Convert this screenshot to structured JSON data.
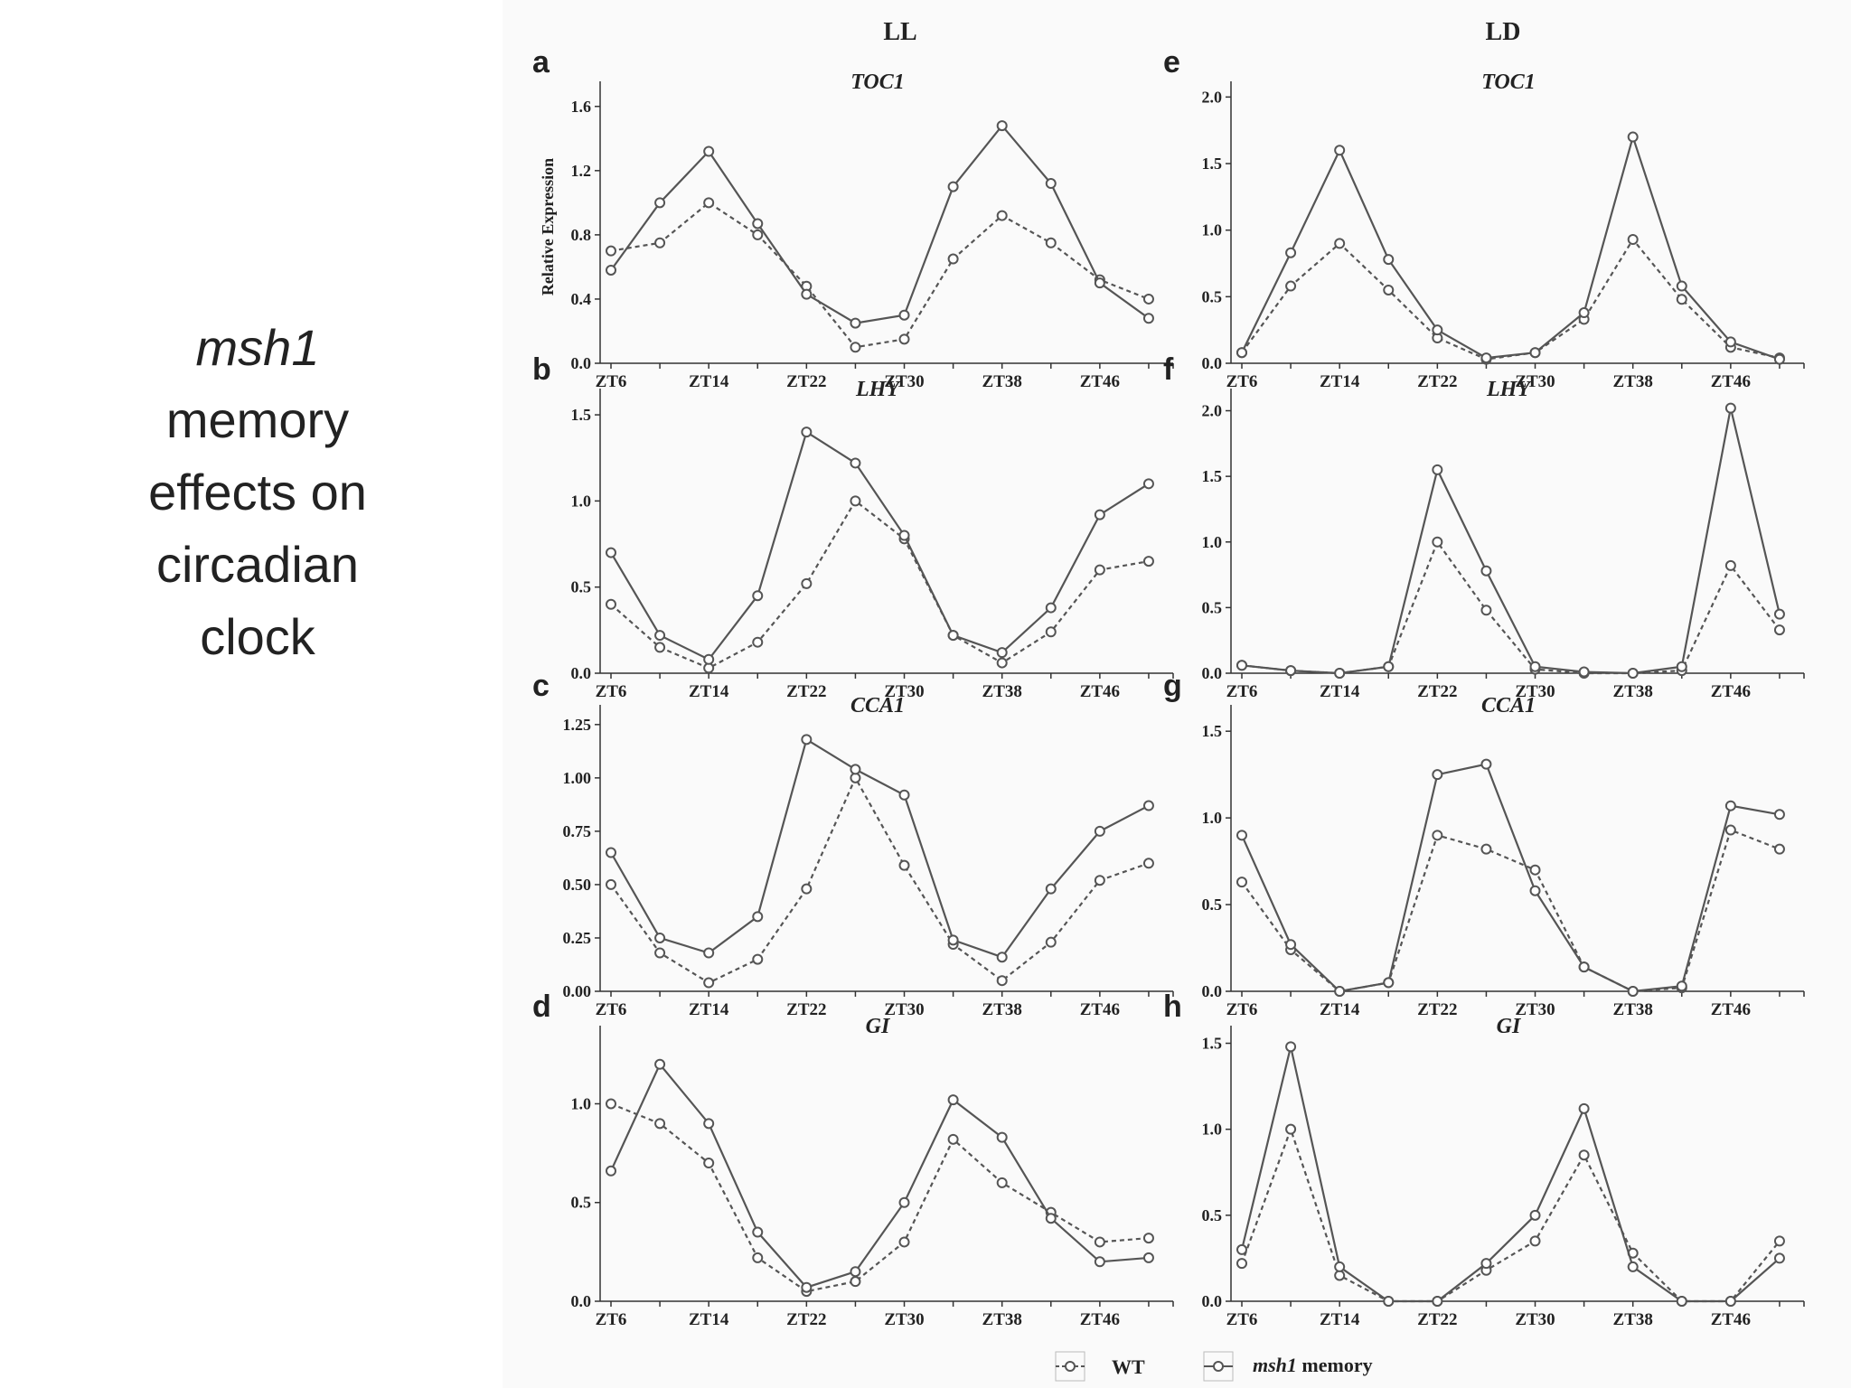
{
  "slide": {
    "title_italic": "msh1",
    "title_lines": [
      "memory",
      "effects on",
      "circadian",
      "clock"
    ]
  },
  "columns": {
    "left": "LL",
    "right": "LD"
  },
  "legend": {
    "wt": "WT",
    "msh1_italic": "msh1",
    "msh1_rest": " memory"
  },
  "colors": {
    "line": "#555555",
    "background": "#fafafa"
  },
  "ylabel": "Relative Expression",
  "chart_data": [
    {
      "type": "line",
      "panel": "a",
      "gene": "TOC1",
      "condition": "LL",
      "x": [
        6,
        10,
        14,
        18,
        22,
        26,
        30,
        34,
        38,
        42,
        46,
        50
      ],
      "x_ticks": [
        "ZT6",
        "ZT14",
        "ZT22",
        "ZT30",
        "ZT38",
        "ZT46"
      ],
      "ylim": [
        0,
        1.7
      ],
      "yticks": [
        "0.0",
        "0.4",
        "0.8",
        "1.2",
        "1.6"
      ],
      "ytick_values": [
        0,
        0.4,
        0.8,
        1.2,
        1.6
      ],
      "ylabel": "Relative Expression",
      "series": [
        {
          "name": "WT",
          "style": "dashed",
          "values": [
            0.7,
            0.75,
            1.0,
            0.8,
            0.48,
            0.1,
            0.15,
            0.65,
            0.92,
            0.75,
            0.52,
            0.4
          ]
        },
        {
          "name": "msh1 memory",
          "style": "solid",
          "values": [
            0.58,
            1.0,
            1.32,
            0.87,
            0.43,
            0.25,
            0.3,
            1.1,
            1.48,
            1.12,
            0.5,
            0.28
          ]
        }
      ]
    },
    {
      "type": "line",
      "panel": "b",
      "gene": "LHY",
      "condition": "LL",
      "x": [
        6,
        10,
        14,
        18,
        22,
        26,
        30,
        34,
        38,
        42,
        46,
        50
      ],
      "x_ticks": [
        "ZT6",
        "ZT14",
        "ZT22",
        "ZT30",
        "ZT38",
        "ZT46"
      ],
      "ylim": [
        0,
        1.6
      ],
      "yticks": [
        "0.0",
        "0.5",
        "1.0",
        "1.5"
      ],
      "ytick_values": [
        0,
        0.5,
        1.0,
        1.5
      ],
      "series": [
        {
          "name": "WT",
          "style": "dashed",
          "values": [
            0.4,
            0.15,
            0.03,
            0.18,
            0.52,
            1.0,
            0.78,
            0.22,
            0.06,
            0.24,
            0.6,
            0.65
          ]
        },
        {
          "name": "msh1 memory",
          "style": "solid",
          "values": [
            0.7,
            0.22,
            0.08,
            0.45,
            1.4,
            1.22,
            0.8,
            0.22,
            0.12,
            0.38,
            0.92,
            1.1
          ]
        }
      ]
    },
    {
      "type": "line",
      "panel": "c",
      "gene": "CCA1",
      "condition": "LL",
      "x": [
        6,
        10,
        14,
        18,
        22,
        26,
        30,
        34,
        38,
        42,
        46,
        50
      ],
      "x_ticks": [
        "ZT6",
        "ZT14",
        "ZT22",
        "ZT30",
        "ZT38",
        "ZT46"
      ],
      "ylim": [
        0,
        1.3
      ],
      "yticks": [
        "0.00",
        "0.25",
        "0.50",
        "0.75",
        "1.00",
        "1.25"
      ],
      "ytick_values": [
        0,
        0.25,
        0.5,
        0.75,
        1.0,
        1.25
      ],
      "series": [
        {
          "name": "WT",
          "style": "dashed",
          "values": [
            0.5,
            0.18,
            0.04,
            0.15,
            0.48,
            1.0,
            0.59,
            0.22,
            0.05,
            0.23,
            0.52,
            0.6
          ]
        },
        {
          "name": "msh1 memory",
          "style": "solid",
          "values": [
            0.65,
            0.25,
            0.18,
            0.35,
            1.18,
            1.04,
            0.92,
            0.24,
            0.16,
            0.48,
            0.75,
            0.87
          ]
        }
      ]
    },
    {
      "type": "line",
      "panel": "d",
      "gene": "GI",
      "condition": "LL",
      "x": [
        6,
        10,
        14,
        18,
        22,
        26,
        30,
        34,
        38,
        42,
        46,
        50
      ],
      "x_ticks": [
        "ZT6",
        "ZT14",
        "ZT22",
        "ZT30",
        "ZT38",
        "ZT46"
      ],
      "ylim": [
        0,
        1.35
      ],
      "yticks": [
        "0.0",
        "0.5",
        "1.0"
      ],
      "ytick_values": [
        0,
        0.5,
        1.0
      ],
      "series": [
        {
          "name": "WT",
          "style": "dashed",
          "values": [
            1.0,
            0.9,
            0.7,
            0.22,
            0.05,
            0.1,
            0.3,
            0.82,
            0.6,
            0.45,
            0.3,
            0.32
          ]
        },
        {
          "name": "msh1 memory",
          "style": "solid",
          "values": [
            0.66,
            1.2,
            0.9,
            0.35,
            0.07,
            0.15,
            0.5,
            1.02,
            0.83,
            0.42,
            0.2,
            0.22
          ]
        }
      ]
    },
    {
      "type": "line",
      "panel": "e",
      "gene": "TOC1",
      "condition": "LD",
      "x": [
        6,
        10,
        14,
        18,
        22,
        26,
        30,
        34,
        38,
        42,
        46,
        50
      ],
      "x_ticks": [
        "ZT6",
        "ZT14",
        "ZT22",
        "ZT30",
        "ZT38",
        "ZT46"
      ],
      "ylim": [
        0,
        2.05
      ],
      "yticks": [
        "0.0",
        "0.5",
        "1.0",
        "1.5",
        "2.0"
      ],
      "ytick_values": [
        0,
        0.5,
        1.0,
        1.5,
        2.0
      ],
      "series": [
        {
          "name": "WT",
          "style": "dashed",
          "values": [
            0.08,
            0.58,
            0.9,
            0.55,
            0.19,
            0.03,
            0.08,
            0.33,
            0.93,
            0.48,
            0.12,
            0.04
          ]
        },
        {
          "name": "msh1 memory",
          "style": "solid",
          "values": [
            0.08,
            0.83,
            1.6,
            0.78,
            0.25,
            0.04,
            0.08,
            0.38,
            1.7,
            0.58,
            0.16,
            0.03
          ]
        }
      ]
    },
    {
      "type": "line",
      "panel": "f",
      "gene": "LHY",
      "condition": "LD",
      "x": [
        6,
        10,
        14,
        18,
        22,
        26,
        30,
        34,
        38,
        42,
        46,
        50
      ],
      "x_ticks": [
        "ZT6",
        "ZT14",
        "ZT22",
        "ZT30",
        "ZT38",
        "ZT46"
      ],
      "ylim": [
        0,
        2.1
      ],
      "yticks": [
        "0.0",
        "0.5",
        "1.0",
        "1.5",
        "2.0"
      ],
      "ytick_values": [
        0,
        0.5,
        1.0,
        1.5,
        2.0
      ],
      "series": [
        {
          "name": "WT",
          "style": "dashed",
          "values": [
            0.06,
            0.02,
            0.0,
            0.05,
            1.0,
            0.48,
            0.03,
            0.0,
            0.0,
            0.02,
            0.82,
            0.33
          ]
        },
        {
          "name": "msh1 memory",
          "style": "solid",
          "values": [
            0.06,
            0.02,
            0.0,
            0.05,
            1.55,
            0.78,
            0.05,
            0.01,
            0.0,
            0.05,
            2.02,
            0.45
          ]
        }
      ]
    },
    {
      "type": "line",
      "panel": "g",
      "gene": "CCA1",
      "condition": "LD",
      "x": [
        6,
        10,
        14,
        18,
        22,
        26,
        30,
        34,
        38,
        42,
        46,
        50
      ],
      "x_ticks": [
        "ZT6",
        "ZT14",
        "ZT22",
        "ZT30",
        "ZT38",
        "ZT46"
      ],
      "ylim": [
        0,
        1.6
      ],
      "yticks": [
        "0.0",
        "0.5",
        "1.0",
        "1.5"
      ],
      "ytick_values": [
        0,
        0.5,
        1.0,
        1.5
      ],
      "series": [
        {
          "name": "WT",
          "style": "dashed",
          "values": [
            0.63,
            0.24,
            0.0,
            0.05,
            0.9,
            0.82,
            0.7,
            0.14,
            0.0,
            0.02,
            0.93,
            0.82
          ]
        },
        {
          "name": "msh1 memory",
          "style": "solid",
          "values": [
            0.9,
            0.27,
            0.0,
            0.05,
            1.25,
            1.31,
            0.58,
            0.14,
            0.0,
            0.03,
            1.07,
            1.02
          ]
        }
      ]
    },
    {
      "type": "line",
      "panel": "h",
      "gene": "GI",
      "condition": "LD",
      "x": [
        6,
        10,
        14,
        18,
        22,
        26,
        30,
        34,
        38,
        42,
        46,
        50
      ],
      "x_ticks": [
        "ZT6",
        "ZT14",
        "ZT22",
        "ZT30",
        "ZT38",
        "ZT46"
      ],
      "ylim": [
        0,
        1.55
      ],
      "yticks": [
        "0.0",
        "0.5",
        "1.0",
        "1.5"
      ],
      "ytick_values": [
        0,
        0.5,
        1.0,
        1.5
      ],
      "series": [
        {
          "name": "WT",
          "style": "dashed",
          "values": [
            0.22,
            1.0,
            0.15,
            0.0,
            0.0,
            0.18,
            0.35,
            0.85,
            0.28,
            0.0,
            0.0,
            0.35
          ]
        },
        {
          "name": "msh1 memory",
          "style": "solid",
          "values": [
            0.3,
            1.48,
            0.2,
            0.0,
            0.0,
            0.22,
            0.5,
            1.12,
            0.2,
            0.0,
            0.0,
            0.25
          ]
        }
      ]
    }
  ]
}
